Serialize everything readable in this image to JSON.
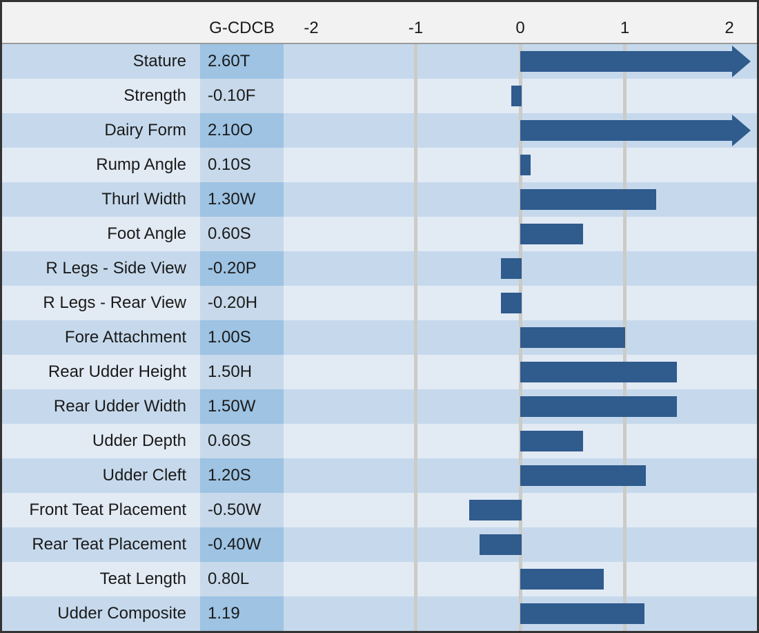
{
  "chart_data": {
    "type": "bar",
    "orientation": "horizontal",
    "title": "",
    "column_header": "G-CDCB",
    "axis": {
      "ticks": [
        -2,
        -1,
        0,
        1,
        2
      ],
      "xlim": [
        -2.25,
        2.25
      ],
      "gridlines_at": [
        -1,
        0,
        1
      ],
      "grid": true
    },
    "rows": [
      {
        "label": "Stature",
        "value_label": "2.60T",
        "value": 2.6,
        "overflow_arrow": true
      },
      {
        "label": "Strength",
        "value_label": "-0.10F",
        "value": -0.1,
        "overflow_arrow": false
      },
      {
        "label": "Dairy Form",
        "value_label": "2.10O",
        "value": 2.1,
        "overflow_arrow": true
      },
      {
        "label": "Rump Angle",
        "value_label": "0.10S",
        "value": 0.1,
        "overflow_arrow": false
      },
      {
        "label": "Thurl Width",
        "value_label": "1.30W",
        "value": 1.3,
        "overflow_arrow": false
      },
      {
        "label": "Foot Angle",
        "value_label": "0.60S",
        "value": 0.6,
        "overflow_arrow": false
      },
      {
        "label": "R Legs - Side View",
        "value_label": "-0.20P",
        "value": -0.2,
        "overflow_arrow": false
      },
      {
        "label": "R Legs - Rear View",
        "value_label": "-0.20H",
        "value": -0.2,
        "overflow_arrow": false
      },
      {
        "label": "Fore Attachment",
        "value_label": "1.00S",
        "value": 1.0,
        "overflow_arrow": false
      },
      {
        "label": "Rear Udder Height",
        "value_label": "1.50H",
        "value": 1.5,
        "overflow_arrow": false
      },
      {
        "label": "Rear Udder Width",
        "value_label": "1.50W",
        "value": 1.5,
        "overflow_arrow": false
      },
      {
        "label": "Udder Depth",
        "value_label": "0.60S",
        "value": 0.6,
        "overflow_arrow": false
      },
      {
        "label": "Udder Cleft",
        "value_label": "1.20S",
        "value": 1.2,
        "overflow_arrow": false
      },
      {
        "label": "Front Teat Placement",
        "value_label": "-0.50W",
        "value": -0.5,
        "overflow_arrow": false
      },
      {
        "label": "Rear Teat Placement",
        "value_label": "-0.40W",
        "value": -0.4,
        "overflow_arrow": false
      },
      {
        "label": "Teat Length",
        "value_label": "0.80L",
        "value": 0.8,
        "overflow_arrow": false
      },
      {
        "label": "Udder Composite",
        "value_label": "1.19",
        "value": 1.19,
        "overflow_arrow": false
      }
    ]
  },
  "colors": {
    "bar": "#2F5B8D",
    "row_dark": "#C6D9EC",
    "row_light": "#E2EAF4",
    "value_col_dark": "#9EC3E3",
    "value_col_light": "#C7D9EA",
    "gridline": "#CBCBC7",
    "header_bg": "#F2F2F2",
    "frame_border": "#333333",
    "text": "#1A1A1A"
  }
}
